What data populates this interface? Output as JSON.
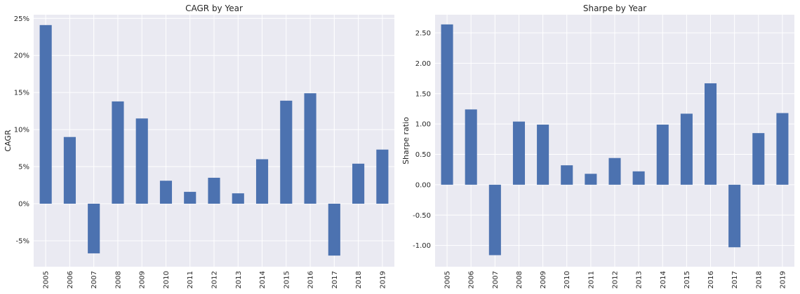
{
  "chart_data": [
    {
      "type": "bar",
      "title": "CAGR by Year",
      "xlabel": "",
      "ylabel": "CAGR",
      "ylim": [
        -0.085,
        0.255
      ],
      "yticks": [
        -0.05,
        0,
        0.05,
        0.1,
        0.15,
        0.2,
        0.25
      ],
      "ytick_labels": [
        "-5%",
        "0%",
        "5%",
        "10%",
        "15%",
        "20%",
        "25%"
      ],
      "categories": [
        "2005",
        "2006",
        "2007",
        "2008",
        "2009",
        "2010",
        "2011",
        "2012",
        "2013",
        "2014",
        "2015",
        "2016",
        "2017",
        "2018",
        "2019"
      ],
      "values": [
        0.241,
        0.09,
        -0.067,
        0.138,
        0.115,
        0.031,
        0.016,
        0.035,
        0.014,
        0.06,
        0.139,
        0.149,
        -0.07,
        0.054,
        0.073
      ],
      "grid": true,
      "color": "#4c72b0"
    },
    {
      "type": "bar",
      "title": "Sharpe by Year",
      "xlabel": "",
      "ylabel": "Sharpe ratio",
      "ylim": [
        -1.35,
        2.8
      ],
      "yticks": [
        -1.0,
        -0.5,
        0,
        0.5,
        1.0,
        1.5,
        2.0,
        2.5
      ],
      "ytick_labels": [
        "-1.00",
        "-0.50",
        "0.00",
        "0.50",
        "1.00",
        "1.50",
        "2.00",
        "2.50"
      ],
      "categories": [
        "2005",
        "2006",
        "2007",
        "2008",
        "2009",
        "2010",
        "2011",
        "2012",
        "2013",
        "2014",
        "2015",
        "2016",
        "2017",
        "2018",
        "2019"
      ],
      "values": [
        2.64,
        1.24,
        -1.16,
        1.04,
        0.99,
        0.32,
        0.18,
        0.44,
        0.22,
        0.99,
        1.17,
        1.67,
        -1.03,
        0.85,
        1.18
      ],
      "grid": true,
      "color": "#4c72b0"
    }
  ]
}
